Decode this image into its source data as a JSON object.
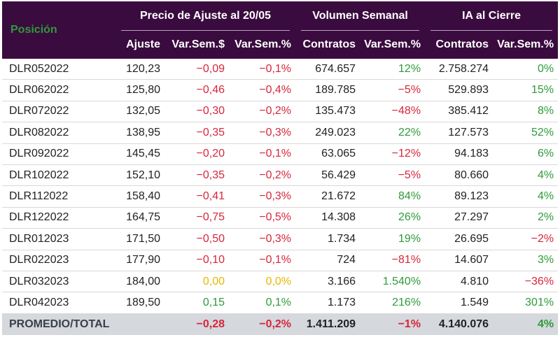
{
  "header": {
    "position": "Posición",
    "groups": [
      "Precio de Ajuste al 20/05",
      "Volumen Semanal",
      "IA al Cierre"
    ],
    "columns": [
      "Ajuste",
      "Var.Sem.$",
      "Var.Sem.%",
      "Contratos",
      "Var.Sem.%",
      "Contratos",
      "Var.Sem.%"
    ]
  },
  "rows": [
    {
      "name": "DLR052022",
      "ajuste": "120,23",
      "var_usd": "-0,09",
      "var_pct": "-0,1%",
      "vol": "674.657",
      "vol_var": "12%",
      "ia": "2.758.274",
      "ia_var": "0%"
    },
    {
      "name": "DLR062022",
      "ajuste": "125,80",
      "var_usd": "-0,46",
      "var_pct": "-0,4%",
      "vol": "189.785",
      "vol_var": "-5%",
      "ia": "529.893",
      "ia_var": "15%"
    },
    {
      "name": "DLR072022",
      "ajuste": "132,05",
      "var_usd": "-0,30",
      "var_pct": "-0,2%",
      "vol": "135.473",
      "vol_var": "-48%",
      "ia": "385.412",
      "ia_var": "8%"
    },
    {
      "name": "DLR082022",
      "ajuste": "138,95",
      "var_usd": "-0,35",
      "var_pct": "-0,3%",
      "vol": "249.023",
      "vol_var": "22%",
      "ia": "127.573",
      "ia_var": "52%"
    },
    {
      "name": "DLR092022",
      "ajuste": "145,45",
      "var_usd": "-0,20",
      "var_pct": "-0,1%",
      "vol": "63.065",
      "vol_var": "-12%",
      "ia": "94.183",
      "ia_var": "6%"
    },
    {
      "name": "DLR102022",
      "ajuste": "152,10",
      "var_usd": "-0,35",
      "var_pct": "-0,2%",
      "vol": "56.429",
      "vol_var": "-5%",
      "ia": "80.660",
      "ia_var": "4%"
    },
    {
      "name": "DLR112022",
      "ajuste": "158,40",
      "var_usd": "-0,41",
      "var_pct": "-0,3%",
      "vol": "21.672",
      "vol_var": "84%",
      "ia": "89.123",
      "ia_var": "4%"
    },
    {
      "name": "DLR122022",
      "ajuste": "164,75",
      "var_usd": "-0,75",
      "var_pct": "-0,5%",
      "vol": "14.308",
      "vol_var": "26%",
      "ia": "27.297",
      "ia_var": "2%"
    },
    {
      "name": "DLR012023",
      "ajuste": "171,50",
      "var_usd": "-0,50",
      "var_pct": "-0,3%",
      "vol": "1.734",
      "vol_var": "19%",
      "ia": "26.695",
      "ia_var": "-2%"
    },
    {
      "name": "DLR022023",
      "ajuste": "177,90",
      "var_usd": "-0,10",
      "var_pct": "-0,1%",
      "vol": "724",
      "vol_var": "-81%",
      "ia": "14.607",
      "ia_var": "3%"
    },
    {
      "name": "DLR032023",
      "ajuste": "184,00",
      "var_usd": "0,00",
      "var_pct": "0,0%",
      "vol": "3.166",
      "vol_var": "1.540%",
      "ia": "4.810",
      "ia_var": "-36%"
    },
    {
      "name": "DLR042023",
      "ajuste": "189,50",
      "var_usd": "0,15",
      "var_pct": "0,1%",
      "vol": "1.173",
      "vol_var": "216%",
      "ia": "1.549",
      "ia_var": "301%"
    }
  ],
  "total": {
    "name": "PROMEDIO/TOTAL",
    "ajuste": "",
    "var_usd": "-0,28",
    "var_pct": "-0,2%",
    "vol": "1.411.209",
    "vol_var": "-1%",
    "ia": "4.140.076",
    "ia_var": "4%"
  },
  "colors": {
    "header_bg": "#3a0b3e",
    "negative": "#d6263b",
    "positive": "#2e9a3a",
    "zero": "#e6b800",
    "total_bg": "#d5d8dd"
  }
}
